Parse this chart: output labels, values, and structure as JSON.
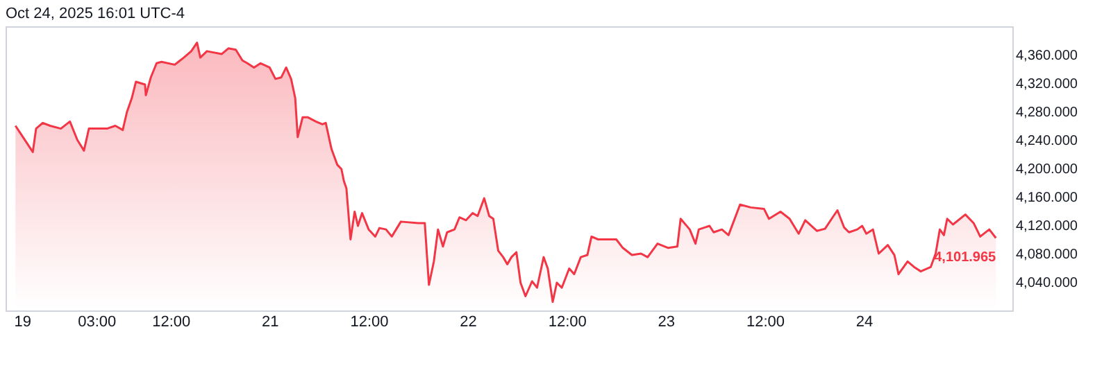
{
  "chart_data": {
    "type": "area",
    "title": "Oct 24, 2025 16:01 UTC-4",
    "x": [
      "2025-10-19T17:12",
      "2025-10-19T18:00",
      "2025-10-19T19:18",
      "2025-10-19T19:42",
      "2025-10-19T20:30",
      "2025-10-19T21:24",
      "2025-10-19T22:42",
      "2025-10-19T23:48",
      "2025-10-20T00:42",
      "2025-10-20T01:30",
      "2025-10-20T02:06",
      "2025-10-20T03:24",
      "2025-10-20T04:18",
      "2025-10-20T05:18",
      "2025-10-20T06:12",
      "2025-10-20T06:42",
      "2025-10-20T07:18",
      "2025-10-20T07:48",
      "2025-10-20T08:54",
      "2025-10-20T09:00",
      "2025-10-20T09:36",
      "2025-10-20T10:18",
      "2025-10-20T10:54",
      "2025-10-20T12:30",
      "2025-10-20T13:36",
      "2025-10-20T14:30",
      "2025-10-20T15:12",
      "2025-10-20T15:36",
      "2025-10-20T16:24",
      "2025-10-20T18:12",
      "2025-10-20T19:00",
      "2025-10-20T19:54",
      "2025-10-20T20:42",
      "2025-10-20T21:18",
      "2025-10-20T22:06",
      "2025-10-20T22:54",
      "2025-10-21T00:00",
      "2025-10-21T00:42",
      "2025-10-21T01:24",
      "2025-10-21T02:00",
      "2025-10-21T02:36",
      "2025-10-21T03:06",
      "2025-10-21T03:24",
      "2025-10-21T04:00",
      "2025-10-21T04:36",
      "2025-10-21T05:36",
      "2025-10-21T06:24",
      "2025-10-21T06:48",
      "2025-10-21T07:30",
      "2025-10-21T08:12",
      "2025-10-21T08:42",
      "2025-10-21T09:00",
      "2025-10-21T09:18",
      "2025-10-21T09:48",
      "2025-10-21T10:18",
      "2025-10-21T10:42",
      "2025-10-21T11:12",
      "2025-10-21T12:00",
      "2025-10-21T12:48",
      "2025-10-21T13:18",
      "2025-10-21T14:06",
      "2025-10-21T14:48",
      "2025-10-21T15:54",
      "2025-10-21T18:00",
      "2025-10-21T18:48",
      "2025-10-21T19:18",
      "2025-10-21T19:54",
      "2025-10-21T20:24",
      "2025-10-21T21:00",
      "2025-10-21T21:30",
      "2025-10-21T22:24",
      "2025-10-21T23:00",
      "2025-10-21T23:48",
      "2025-10-22T00:36",
      "2025-10-22T01:12",
      "2025-10-22T02:00",
      "2025-10-22T02:36",
      "2025-10-22T03:06",
      "2025-10-22T03:42",
      "2025-10-22T04:18",
      "2025-10-22T04:48",
      "2025-10-22T05:18",
      "2025-10-22T05:54",
      "2025-10-22T06:24",
      "2025-10-22T07:00",
      "2025-10-22T07:48",
      "2025-10-22T08:24",
      "2025-10-22T09:12",
      "2025-10-22T09:42",
      "2025-10-22T10:18",
      "2025-10-22T10:48",
      "2025-10-22T11:24",
      "2025-10-22T12:18",
      "2025-10-22T12:54",
      "2025-10-22T13:42",
      "2025-10-22T14:30",
      "2025-10-22T15:00",
      "2025-10-22T15:48",
      "2025-10-22T18:00",
      "2025-10-22T18:48",
      "2025-10-22T19:54",
      "2025-10-22T21:00",
      "2025-10-22T21:48",
      "2025-10-22T23:00",
      "2025-10-23T00:18",
      "2025-10-23T01:24",
      "2025-10-23T01:48",
      "2025-10-23T02:54",
      "2025-10-23T03:36",
      "2025-10-23T04:00",
      "2025-10-23T05:18",
      "2025-10-23T05:48",
      "2025-10-23T06:48",
      "2025-10-23T07:36",
      "2025-10-23T09:00",
      "2025-10-23T10:18",
      "2025-10-23T11:54",
      "2025-10-23T12:30",
      "2025-10-23T13:54",
      "2025-10-23T15:00",
      "2025-10-23T16:06",
      "2025-10-23T16:54",
      "2025-10-23T18:18",
      "2025-10-23T19:18",
      "2025-10-23T20:06",
      "2025-10-23T20:48",
      "2025-10-23T21:36",
      "2025-10-23T22:12",
      "2025-10-23T23:12",
      "2025-10-23T23:48",
      "2025-10-24T00:18",
      "2025-10-24T01:06",
      "2025-10-24T01:48",
      "2025-10-24T02:54",
      "2025-10-24T03:42",
      "2025-10-24T04:12",
      "2025-10-24T05:18",
      "2025-10-24T06:06",
      "2025-10-24T06:54",
      "2025-10-24T08:06",
      "2025-10-24T08:42",
      "2025-10-24T09:12",
      "2025-10-24T09:42",
      "2025-10-24T10:06",
      "2025-10-24T10:48",
      "2025-10-24T12:18",
      "2025-10-24T13:18",
      "2025-10-24T14:06",
      "2025-10-24T15:12",
      "2025-10-24T16:00"
    ],
    "series": [
      {
        "color": "#f23645",
        "values": [
          4260,
          4246,
          4223,
          4256,
          4264,
          4260,
          4256,
          4266,
          4240,
          4225,
          4256,
          4256,
          4256,
          4260,
          4254,
          4279,
          4299,
          4322,
          4318,
          4303,
          4328,
          4348,
          4350,
          4346,
          4356,
          4365,
          4377,
          4356,
          4365,
          4361,
          4369,
          4367,
          4352,
          4348,
          4342,
          4348,
          4342,
          4326,
          4328,
          4342,
          4326,
          4299,
          4244,
          4272,
          4272,
          4266,
          4262,
          4264,
          4227,
          4205,
          4199,
          4182,
          4172,
          4100,
          4139,
          4119,
          4137,
          4114,
          4104,
          4116,
          4114,
          4104,
          4125,
          4123,
          4123,
          4036,
          4069,
          4114,
          4090,
          4110,
          4114,
          4131,
          4127,
          4137,
          4133,
          4158,
          4133,
          4129,
          4084,
          4075,
          4065,
          4075,
          4082,
          4039,
          4020,
          4041,
          4032,
          4075,
          4059,
          4012,
          4039,
          4032,
          4059,
          4051,
          4075,
          4078,
          4104,
          4100,
          4100,
          4088,
          4078,
          4080,
          4075,
          4094,
          4088,
          4090,
          4129,
          4114,
          4094,
          4114,
          4119,
          4110,
          4114,
          4106,
          4149,
          4145,
          4143,
          4129,
          4139,
          4129,
          4108,
          4127,
          4112,
          4115,
          4129,
          4141,
          4117,
          4110,
          4114,
          4119,
          4108,
          4114,
          4080,
          4092,
          4078,
          4051,
          4069,
          4061,
          4055,
          4061,
          4080,
          4114,
          4106,
          4129,
          4121,
          4135,
          4123,
          4104,
          4114,
          4101.965
        ]
      }
    ],
    "xlim": [
      "2025-10-19T16:00",
      "2025-10-24T18:00"
    ],
    "xticks": [
      {
        "value": "2025-10-19T18:00",
        "label": "19"
      },
      {
        "value": "2025-10-20T03:00",
        "label": "03:00"
      },
      {
        "value": "2025-10-20T12:00",
        "label": "12:00"
      },
      {
        "value": "2025-10-21T00:00",
        "label": "21"
      },
      {
        "value": "2025-10-21T12:00",
        "label": "12:00"
      },
      {
        "value": "2025-10-22T00:00",
        "label": "22"
      },
      {
        "value": "2025-10-22T12:00",
        "label": "12:00"
      },
      {
        "value": "2025-10-23T00:00",
        "label": "23"
      },
      {
        "value": "2025-10-23T12:00",
        "label": "12:00"
      },
      {
        "value": "2025-10-24T00:00",
        "label": "24"
      }
    ],
    "ylim": [
      4000,
      4400
    ],
    "yticks": [
      {
        "value": 4040,
        "label": "4,040.000"
      },
      {
        "value": 4080,
        "label": "4,080.000"
      },
      {
        "value": 4120,
        "label": "4,120.000"
      },
      {
        "value": 4160,
        "label": "4,160.000"
      },
      {
        "value": 4200,
        "label": "4,200.000"
      },
      {
        "value": 4240,
        "label": "4,240.000"
      },
      {
        "value": 4280,
        "label": "4,280.000"
      },
      {
        "value": 4320,
        "label": "4,320.000"
      },
      {
        "value": 4360,
        "label": "4,360.000"
      }
    ],
    "annotations": [
      {
        "text": "4,101.965",
        "x": "2025-10-24T16:00",
        "y": 4101.965
      }
    ],
    "grid": false
  }
}
